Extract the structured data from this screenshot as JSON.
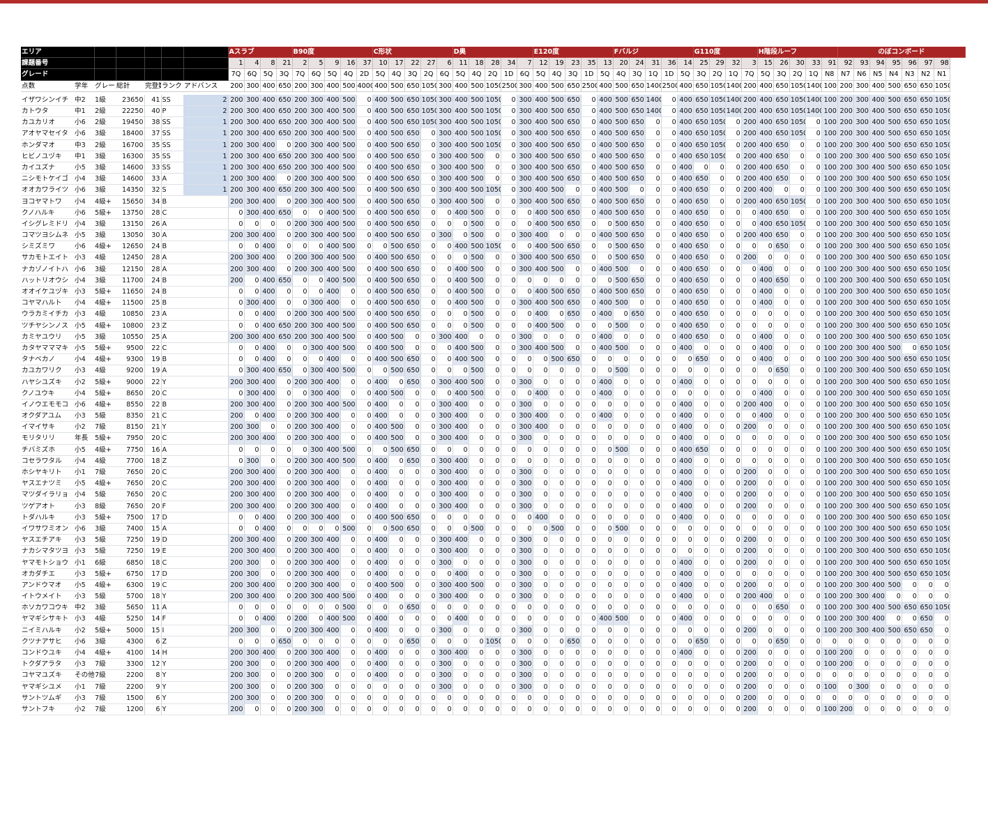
{
  "header": {
    "row_labels": [
      "エリア",
      "課題番号",
      "グレード",
      "点数"
    ],
    "info_cols": [
      "学年",
      "グレー",
      "総計",
      "完登数",
      "ランク",
      "アドバンス"
    ],
    "areas": [
      [
        "Aスラブ",
        4
      ],
      [
        "B90度",
        5
      ],
      [
        "C形状",
        5
      ],
      [
        "D奥",
        5
      ],
      [
        "E120度",
        5
      ],
      [
        "Fバルジ",
        5
      ],
      [
        "G110度",
        4
      ],
      [
        "H階段ルーフ",
        5
      ],
      [
        "のぼコンボード",
        9
      ]
    ],
    "nums": [
      "1",
      "4",
      "8",
      "21",
      "2",
      "5",
      "9",
      "16",
      "37",
      "10",
      "17",
      "22",
      "27",
      "6",
      "11",
      "18",
      "28",
      "34",
      "7",
      "12",
      "19",
      "23",
      "35",
      "13",
      "20",
      "24",
      "31",
      "36",
      "14",
      "25",
      "29",
      "32",
      "3",
      "15",
      "26",
      "30",
      "33",
      "91",
      "92",
      "93",
      "94",
      "95",
      "96",
      "97",
      "98"
    ],
    "grades": [
      "7Q",
      "6Q",
      "5Q",
      "3Q",
      "7Q",
      "6Q",
      "5Q",
      "4Q",
      "2D",
      "5Q",
      "4Q",
      "3Q",
      "2Q",
      "6Q",
      "5Q",
      "4Q",
      "2Q",
      "1D",
      "6Q",
      "5Q",
      "4Q",
      "3Q",
      "1D",
      "5Q",
      "4Q",
      "3Q",
      "1Q",
      "1D",
      "5Q",
      "3Q",
      "2Q",
      "1Q",
      "7Q",
      "5Q",
      "3Q",
      "2Q",
      "1Q",
      "N8",
      "N7",
      "N6",
      "N5",
      "N4",
      "N3",
      "N2",
      "N1"
    ],
    "points": [
      "200",
      "300",
      "400",
      "650",
      "200",
      "300",
      "400",
      "500",
      "4000",
      "400",
      "500",
      "650",
      "1050",
      "300",
      "400",
      "500",
      "1050",
      "2500",
      "300",
      "400",
      "500",
      "650",
      "2500",
      "400",
      "500",
      "650",
      "1400",
      "2500",
      "400",
      "650",
      "1050",
      "1400",
      "200",
      "400",
      "650",
      "1050",
      "1400",
      "100",
      "200",
      "300",
      "400",
      "500",
      "650",
      "650",
      "1050"
    ]
  },
  "rows": [
    [
      "イザワシンイチ",
      "中2",
      "1級",
      "23650",
      "41",
      "SS",
      "2",
      "200 300 400 650 200 300 400 500 0 400 500 650 1050 300 400 500 1050 0 300 400 500 650 0 400 500 650 1400 0 400 650 1050 1400 200 400 650 1050 1400 100 200 300 400 500 650 650 1050"
    ],
    [
      "カトウタ",
      "中1",
      "2級",
      "22250",
      "40",
      "P",
      "2",
      "200 300 400 650 200 300 400 500 0 400 500 650 1050 300 400 500 1050 0 300 400 500 650 0 400 500 650 1400 0 400 650 1050 1400 200 400 650 1050 1400 100 200 300 400 500 650 650 1050"
    ],
    [
      "カユカリオ",
      "小6",
      "2級",
      "19450",
      "38",
      "SS",
      "1",
      "200 300 400 650 200 300 400 500 0 400 500 650 1050 300 400 500 1050 0 300 400 500 650 0 400 500 650 0 0 400 650 1050 0 200 400 650 1050 0 100 200 300 400 500 650 650 1050"
    ],
    [
      "アオヤマセイタ",
      "小6",
      "3級",
      "18400",
      "37",
      "SS",
      "1",
      "200 300 400 650 200 300 400 500 0 400 500 650 0 300 400 500 1050 0 300 400 500 650 0 400 500 650 0 0 400 650 1050 0 200 400 650 1050 0 100 200 300 400 500 650 650 1050"
    ],
    [
      "ホンダマオ",
      "中3",
      "2級",
      "16700",
      "35",
      "SS",
      "1",
      "200 300 400 0 200 300 400 500 0 400 500 650 0 300 400 500 1050 0 300 400 500 650 0 400 500 650 0 0 400 650 1050 0 200 400 650 0 0 100 200 300 400 500 650 650 1050"
    ],
    [
      "ヒビノユヅキ",
      "中1",
      "3級",
      "16300",
      "35",
      "SS",
      "1",
      "200 300 400 650 200 300 400 500 0 400 500 650 0 300 400 500 0 0 300 400 500 650 0 400 500 650 0 0 400 650 1050 0 200 400 650 0 0 100 200 300 400 500 650 650 1050"
    ],
    [
      "カイユズナ",
      "小5",
      "3級",
      "14600",
      "33",
      "SS",
      "1",
      "200 300 400 650 200 300 400 500 0 400 500 650 0 300 400 500 0 0 300 400 500 650 0 400 500 650 0 0 400 0 0 0 200 400 650 0 0 100 200 300 400 500 650 650 1050"
    ],
    [
      "ニシモトケイゴ",
      "小4",
      "3級",
      "14600",
      "33",
      "A",
      "1",
      "200 300 400 0 200 300 400 500 0 400 500 650 0 300 400 500 0 0 300 400 500 650 0 400 500 650 0 0 400 650 0 0 200 400 650 0 0 100 200 300 400 500 650 650 1050"
    ],
    [
      "オオカワライツ",
      "小6",
      "3級",
      "14350",
      "32",
      "S",
      "1",
      "200 300 400 650 200 300 400 500 0 400 500 650 0 300 400 500 1050 0 300 400 500 0 0 400 500 0 0 0 400 650 0 0 200 400 0 0 0 100 200 300 400 500 650 650 1050"
    ],
    [
      "ヨコヤマトワ",
      "小4",
      "4級+",
      "15650",
      "34",
      "B",
      "",
      "200 300 400 0 200 300 400 500 0 400 500 650 0 300 400 500 0 0 300 400 500 650 0 400 500 650 0 0 400 650 0 0 200 400 650 1050 0 100 200 300 400 500 650 650 1050"
    ],
    [
      "クノハルキ",
      "小6",
      "5級+",
      "13750",
      "28",
      "C",
      "",
      "0 300 400 650 0 0 400 500 0 400 500 650 0 0 400 500 0 0 0 400 500 650 0 400 500 650 0 0 400 650 0 0 0 400 650 0 0 100 200 300 400 500 650 650 1050"
    ],
    [
      "イシグレミドリ",
      "小4",
      "3級",
      "13150",
      "26",
      "A",
      "",
      "0 0 0 0 200 300 400 500 0 400 500 650 0 0 0 500 0 0 0 400 500 650 0 0 500 650 0 0 400 650 0 0 0 400 650 1050 0 100 200 300 400 500 650 650 1050"
    ],
    [
      "コマツヨシムネ",
      "小5",
      "3級",
      "13050",
      "30",
      "A",
      "",
      "200 300 400 0 200 300 400 500 0 400 500 650 0 300 0 500 0 0 300 400 0 0 0 400 500 650 0 0 400 650 0 0 200 400 650 0 0 100 200 300 400 500 650 650 1050"
    ],
    [
      "シミズミワ",
      "小6",
      "4級+",
      "12650",
      "24",
      "B",
      "",
      "0 0 400 0 0 0 400 500 0 0 500 650 0 0 400 500 1050 0 0 400 500 650 0 0 500 650 0 0 400 650 0 0 0 0 650 0 0 100 200 300 400 500 650 650 1050"
    ],
    [
      "サカモトエイト",
      "小3",
      "4級",
      "12450",
      "28",
      "A",
      "",
      "200 300 400 0 200 300 400 500 0 400 500 650 0 0 0 500 0 0 300 400 500 650 0 0 500 650 0 0 400 650 0 0 200 0 0 0 0 100 200 300 400 500 650 650 1050"
    ],
    [
      "ナカゾノイトハ",
      "小6",
      "3級",
      "12150",
      "28",
      "A",
      "",
      "200 300 400 0 200 300 400 500 0 400 500 650 0 0 400 500 0 0 300 400 500 0 0 400 500 0 0 0 400 650 0 0 0 400 0 0 0 100 200 300 400 500 650 650 1050"
    ],
    [
      "ハットリオウシ",
      "小4",
      "3級",
      "11700",
      "24",
      "B",
      "",
      "200 0 400 650 0 0 400 500 0 400 500 650 0 0 400 500 0 0 0 0 0 0 0 0 500 650 0 0 400 650 0 0 0 400 650 0 0 100 200 300 400 500 650 650 1050"
    ],
    [
      "オオイケユヅキ",
      "小3",
      "5級+",
      "11650",
      "24",
      "B",
      "",
      "0 0 400 0 0 0 400 0 0 400 500 650 0 0 400 500 0 0 0 400 500 650 0 400 500 650 0 0 400 650 0 0 0 400 0 0 0 100 200 300 400 500 650 650 1050"
    ],
    [
      "コヤマハルト",
      "小4",
      "4級+",
      "11500",
      "25",
      "B",
      "",
      "0 300 400 0 0 300 400 0 0 400 500 650 0 0 400 500 0 0 300 400 500 650 0 400 500 0 0 0 400 650 0 0 0 400 0 0 0 100 200 300 400 500 650 650 1050"
    ],
    [
      "ウラカミイチカ",
      "小3",
      "4級",
      "10850",
      "23",
      "A",
      "",
      "0 0 400 0 200 300 400 500 0 400 500 650 0 0 0 500 0 0 0 400 0 650 0 400 0 650 0 0 400 650 0 0 0 0 0 0 0 100 200 300 400 500 650 650 1050"
    ],
    [
      "ツチヤシンノス",
      "小5",
      "4級+",
      "10800",
      "23",
      "Z",
      "",
      "0 0 400 650 200 300 400 500 0 400 500 650 0 0 0 500 0 0 0 400 500 0 0 0 500 0 0 0 400 650 0 0 0 0 0 0 0 100 200 300 400 500 650 650 1050"
    ],
    [
      "カミヤユウリ",
      "小5",
      "3級",
      "10550",
      "25",
      "A",
      "",
      "200 300 400 650 200 300 400 500 0 400 500 0 0 300 400 0 0 0 300 0 0 0 0 400 0 0 0 0 400 650 0 0 0 400 0 0 0 100 200 300 400 500 650 650 1050"
    ],
    [
      "カタヤマママキ",
      "小5",
      "5級+",
      "9500",
      "22",
      "C",
      "",
      "0 0 400 0 0 300 400 500 0 400 500 0 0 0 400 500 0 0 300 400 500 0 0 400 500 0 0 0 400 0 0 0 0 400 0 0 0 100 200 300 400 500 0 650 1050"
    ],
    [
      "タナベカノ",
      "小4",
      "4級+",
      "9300",
      "19",
      "B",
      "",
      "0 0 400 0 0 0 400 0 0 400 500 650 0 0 400 500 0 0 0 0 500 650 0 0 0 0 0 0 0 650 0 0 0 400 0 0 0 100 200 300 400 500 650 650 1050"
    ],
    [
      "カユカワリク",
      "小3",
      "4級",
      "9200",
      "19",
      "A",
      "",
      "0 300 400 650 0 300 400 500 0 0 500 650 0 0 0 500 0 0 0 0 0 0 0 0 500 0 0 0 0 0 0 0 0 0 650 0 0 100 200 300 400 500 650 650 1050"
    ],
    [
      "ハヤシユズキ",
      "小2",
      "5級+",
      "9000",
      "22",
      "Y",
      "",
      "200 300 400 0 200 300 400 0 0 400 0 650 0 300 400 500 0 0 300 0 0 0 0 400 0 0 0 0 400 0 0 0 0 0 0 0 0 100 200 300 400 500 650 650 1050"
    ],
    [
      "クノユウキ",
      "小4",
      "5級+",
      "8650",
      "20",
      "C",
      "",
      "0 300 400 0 0 300 400 0 0 400 500 0 0 0 400 500 0 0 0 400 0 0 0 400 0 0 0 0 0 0 0 0 0 400 0 0 0 100 200 300 400 500 650 650 1050"
    ],
    [
      "イノウエモモコ",
      "小6",
      "4級+",
      "8550",
      "22",
      "B",
      "",
      "200 300 400 0 200 300 400 500 0 400 0 0 0 300 400 0 0 0 300 0 0 0 0 0 0 0 0 0 400 0 0 0 200 400 0 0 0 100 200 300 400 500 650 650 1050"
    ],
    [
      "オクダアユム",
      "小3",
      "5級",
      "8350",
      "21",
      "C",
      "",
      "200 0 400 0 200 300 400 0 0 400 0 0 0 300 400 0 0 0 300 400 0 0 0 400 0 0 0 0 400 0 0 0 0 400 0 0 0 100 200 300 400 500 650 650 1050"
    ],
    [
      "イマイサキ",
      "小2",
      "7級",
      "8150",
      "21",
      "Y",
      "",
      "200 300 0 0 200 300 400 0 0 400 500 0 0 300 400 0 0 0 300 400 0 0 0 0 0 0 0 0 400 0 0 0 200 0 0 0 0 100 200 300 400 500 650 650 1050"
    ],
    [
      "モリタリリ",
      "年長",
      "5級+",
      "7950",
      "20",
      "C",
      "",
      "200 300 400 0 200 300 400 0 0 400 500 0 0 300 400 0 0 0 300 0 0 0 0 0 0 0 0 0 400 0 0 0 0 0 0 0 0 100 200 300 400 500 650 650 1050"
    ],
    [
      "チバミズホ",
      "小5",
      "4級+",
      "7750",
      "16",
      "A",
      "",
      "0 0 0 0 0 300 400 500 0 0 500 650 0 0 0 0 0 0 0 0 0 0 0 0 500 0 0 0 400 650 0 0 0 0 0 0 0 100 200 300 400 500 650 650 1050"
    ],
    [
      "コセラワタル",
      "小4",
      "4級",
      "7700",
      "18",
      "Z",
      "",
      "0 300 0 0 200 300 400 500 0 400 0 650 0 300 400 0 0 0 0 0 0 0 0 0 0 0 0 0 400 0 0 0 0 0 0 0 0 100 200 300 400 500 650 650 1050"
    ],
    [
      "ホシヤキリト",
      "小1",
      "7級",
      "7650",
      "20",
      "C",
      "",
      "200 300 400 0 200 300 400 0 0 400 0 0 0 300 400 0 0 0 300 0 0 0 0 0 0 0 0 0 400 0 0 0 200 0 0 0 0 100 200 300 400 500 650 650 1050"
    ],
    [
      "ヤスエナツミ",
      "小5",
      "4級+",
      "7650",
      "20",
      "C",
      "",
      "200 300 400 0 200 300 400 0 0 400 0 0 0 300 400 0 0 0 300 0 0 0 0 0 0 0 0 0 400 0 0 0 200 0 0 0 0 100 200 300 400 500 650 650 1050"
    ],
    [
      "マツダイラリョ",
      "小4",
      "5級",
      "7650",
      "20",
      "C",
      "",
      "200 300 400 0 200 300 400 0 0 400 0 0 0 300 400 0 0 0 300 0 0 0 0 0 0 0 0 0 400 0 0 0 200 0 0 0 0 100 200 300 400 500 650 650 1050"
    ],
    [
      "ツゲアオト",
      "小3",
      "8級",
      "7650",
      "20",
      "F",
      "",
      "200 300 400 0 200 300 400 0 0 400 0 0 0 300 400 0 0 0 300 0 0 0 0 0 0 0 0 0 400 0 0 0 200 0 0 0 0 100 200 300 400 500 650 650 1050"
    ],
    [
      "トダハルキ",
      "小3",
      "5級+",
      "7500",
      "17",
      "D",
      "",
      "0 0 400 0 200 300 400 0 0 400 500 650 0 0 0 0 0 0 0 400 0 0 0 0 0 0 0 0 400 0 0 0 0 0 0 0 0 100 200 300 400 500 650 650 1050"
    ],
    [
      "イワサワミオン",
      "小6",
      "3級",
      "7400",
      "15",
      "A",
      "",
      "0 0 400 0 0 0 0 500 0 0 500 650 0 0 0 500 0 0 0 0 500 0 0 0 500 0 0 0 0 0 0 0 0 0 0 0 0 100 200 300 400 500 650 650 1050"
    ],
    [
      "ヤスエチアキ",
      "小3",
      "5級",
      "7250",
      "19",
      "D",
      "",
      "200 300 400 0 200 300 400 0 0 400 0 0 0 300 400 0 0 0 300 0 0 0 0 0 0 0 0 0 0 0 0 0 200 0 0 0 0 100 200 300 400 500 650 650 1050"
    ],
    [
      "ナカシマタツヨ",
      "小3",
      "5級",
      "7250",
      "19",
      "E",
      "",
      "200 300 400 0 200 300 400 0 0 400 0 0 0 300 400 0 0 0 300 0 0 0 0 0 0 0 0 0 0 0 0 0 200 0 0 0 0 100 200 300 400 500 650 650 1050"
    ],
    [
      "ヤマモトショウ",
      "小1",
      "6級",
      "6850",
      "18",
      "C",
      "",
      "200 300 0 0 200 300 400 0 0 400 0 0 0 300 0 0 0 0 300 0 0 0 0 0 0 0 0 0 400 0 0 0 200 0 0 0 0 100 200 300 400 500 650 650 1050"
    ],
    [
      "オカダチエ",
      "小3",
      "5級+",
      "6750",
      "17",
      "D",
      "",
      "200 300 0 0 200 300 400 0 0 400 0 0 0 0 400 0 0 0 300 0 0 0 0 0 0 0 0 0 400 0 0 0 0 0 0 0 0 100 200 300 400 500 650 650 1050"
    ],
    [
      "アンドウマオ",
      "小5",
      "4級+",
      "6300",
      "19",
      "C",
      "",
      "200 300 400 0 200 300 400 0 0 400 500 0 0 300 400 500 0 0 300 0 0 0 0 0 0 0 0 0 400 0 0 0 200 0 0 0 0 100 200 300 400 500 0 0 0"
    ],
    [
      "イトウメイト",
      "小3",
      "5級",
      "5700",
      "18",
      "Y",
      "",
      "200 300 400 0 200 300 400 500 0 400 0 0 0 300 400 0 0 0 300 0 0 0 0 0 0 0 0 0 400 0 0 0 200 400 0 0 0 100 200 300 400 0 0 0 0"
    ],
    [
      "ホソカワコウキ",
      "中2",
      "3級",
      "5650",
      "11",
      "A",
      "",
      "0 0 0 0 0 0 0 500 0 0 0 650 0 0 0 0 0 0 0 0 0 0 0 0 0 0 0 0 0 0 0 0 0 0 650 0 0 100 200 300 400 500 650 650 1050"
    ],
    [
      "ヤマギシサキト",
      "小3",
      "4級",
      "5250",
      "14",
      "F",
      "",
      "0 0 400 0 200 0 400 500 0 400 0 0 0 0 400 0 0 0 0 0 0 0 0 400 500 0 0 0 400 0 0 0 0 0 0 0 0 100 200 300 400 0 0 650 0"
    ],
    [
      "ニイミハルキ",
      "小2",
      "5級+",
      "5000",
      "15",
      "I",
      "",
      "200 300 0 0 200 300 400 0 0 400 0 0 0 300 0 0 0 0 300 0 0 0 0 0 0 0 0 0 0 0 0 0 200 0 0 0 0 100 200 300 400 500 650 650 0"
    ],
    [
      "クツナアサヒ",
      "小6",
      "3級",
      "4300",
      "6",
      "Z",
      "",
      "0 0 0 650 0 0 0 0 0 0 0 650 0 0 0 0 1050 0 0 0 0 650 0 0 0 0 0 0 0 650 0 0 0 0 650 0 0 0 0 0 0 0 0 0 0"
    ],
    [
      "コンドウユキ",
      "小4",
      "4級+",
      "4100",
      "14",
      "H",
      "",
      "200 300 400 0 200 300 400 0 0 400 0 0 0 300 400 0 0 0 300 0 0 0 0 0 0 0 0 0 400 0 0 0 200 0 0 0 0 100 200 0 0 0 0 0 0"
    ],
    [
      "トクダアラタ",
      "小3",
      "7級",
      "3300",
      "12",
      "Y",
      "",
      "200 300 0 0 200 300 400 0 0 400 0 0 0 300 0 0 0 0 300 0 0 0 0 0 0 0 0 0 0 0 0 0 200 0 0 0 0 100 200 0 0 0 0 0 0"
    ],
    [
      "コヤマユズキ",
      "その他",
      "7級",
      "2200",
      "8",
      "Y",
      "",
      "200 300 0 0 200 300 0 0 0 400 0 0 0 300 0 0 0 0 300 0 0 0 0 0 0 0 0 0 0 0 0 0 200 0 0 0 0 0 0 0 0 0 0 0 0"
    ],
    [
      "ヤマギシユメ",
      "小1",
      "7級",
      "2200",
      "9",
      "Y",
      "",
      "200 300 0 0 200 300 0 0 0 0 0 0 0 300 0 0 0 0 300 0 0 0 0 0 0 0 0 0 0 0 0 0 200 0 0 0 0 100 0 300 0 0 0 0 0"
    ],
    [
      "サントツムギ",
      "小3",
      "7級",
      "1500",
      "6",
      "Y",
      "",
      "200 300 0 0 200 300 0 0 0 0 0 0 0 0 0 0 0 0 0 0 0 0 0 0 0 0 0 0 0 0 0 0 200 0 0 0 0 0 0 0 0 0 0 0 0"
    ],
    [
      "サントフキ",
      "小2",
      "7級",
      "1200",
      "6",
      "Y",
      "",
      "200 0 0 0 200 300 0 0 0 0 0 0 0 0 0 0 0 0 0 0 0 0 0 0 0 0 0 0 0 0 0 0 200 0 0 0 0 100 200 0 0 0 0 0 0"
    ]
  ]
}
